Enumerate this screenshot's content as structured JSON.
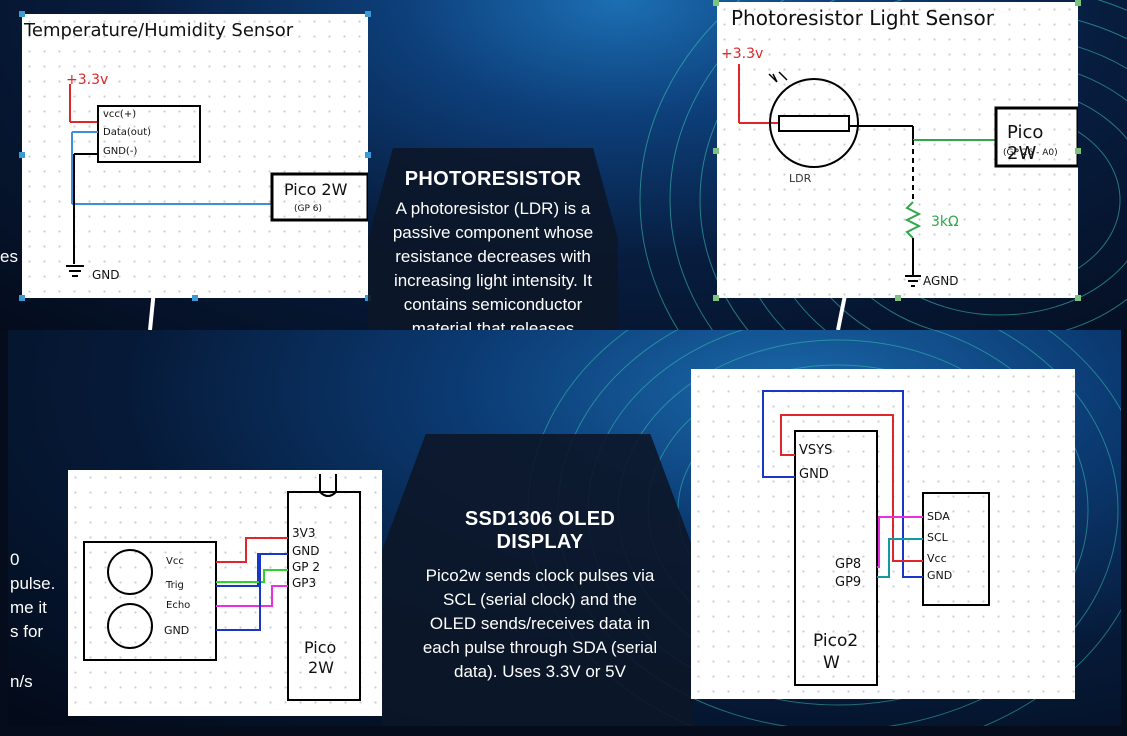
{
  "temp_card": {
    "title": "Temperature/Humidity Sensor",
    "supply": "+3.3v",
    "pins": [
      "vcc(+)",
      "Data(out)",
      "GND(-)"
    ],
    "ground": "GND",
    "board": "Pico 2W",
    "board_pin": "(GP 6)"
  },
  "photo_info": {
    "title": "PHOTORESISTOR",
    "lines": [
      "A photoresistor (LDR) is a",
      "passive component whose",
      "resistance decreases with",
      "increasing light intensity. It",
      "contains semiconductor",
      "material that releases"
    ]
  },
  "ldr_card": {
    "title": "Photoresistor Light Sensor",
    "supply": "+3.3v",
    "ldr_label": "LDR",
    "board": "Pico 2W",
    "board_pin": "(GP 26 - A0)",
    "resistor": "3kΩ",
    "ground": "AGND"
  },
  "left_clip": {
    "top_fragment": "es",
    "lines": [
      "0",
      "pulse.",
      "me it",
      "s for",
      "",
      "n/s"
    ]
  },
  "ultra_card": {
    "pins": [
      "Vcc",
      "Trig",
      "Echo",
      "GND"
    ],
    "board_pins": [
      "3V3",
      "GND",
      "GP 2",
      "GP3"
    ],
    "board": "Pico",
    "board2": "2W"
  },
  "oled_info": {
    "title_line1": "SSD1306 OLED",
    "title_line2": "DISPLAY",
    "lines": [
      "Pico2w sends clock pulses via",
      "SCL (serial clock) and the",
      "OLED sends/receives data in",
      "each pulse through SDA (serial",
      "data). Uses 3.3V or 5V"
    ]
  },
  "oled_card": {
    "board_pins": [
      "VSYS",
      "GND",
      "GP8",
      "GP9"
    ],
    "board": "Pico2",
    "board2": "W",
    "oled_pins": [
      "SDA",
      "SCL",
      "Vcc",
      "GND"
    ]
  },
  "colors": {
    "red": "#e0262a",
    "blue": "#1a36c8",
    "green": "#2fd12f",
    "magenta": "#e830e0",
    "teal": "#129aa0",
    "lightblue": "#3c8fd8"
  }
}
